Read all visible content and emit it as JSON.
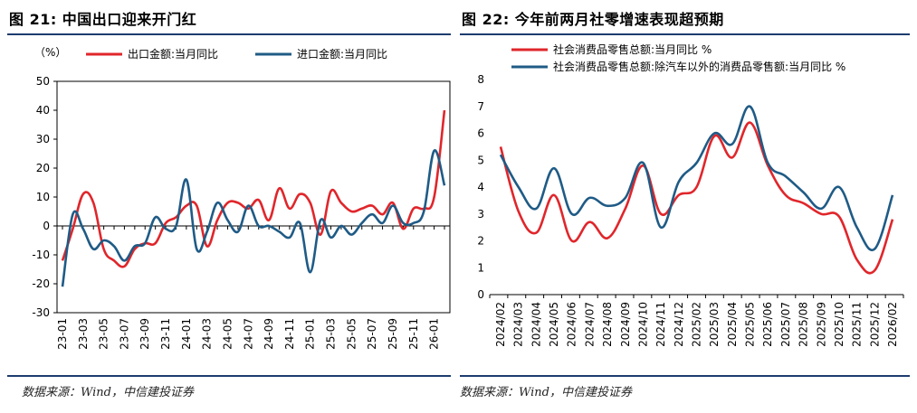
{
  "left": {
    "title": "图 21:  中国出口迎来开门红",
    "source": "数据来源：Wind，中信建投证券"
  },
  "right": {
    "title": "图 22:  今年前两月社零增速表现超预期",
    "source": "数据来源：Wind，中信建投证券"
  },
  "colors": {
    "red": "#e0262b",
    "blue": "#1f5b86",
    "rule": "#1d3c6e"
  },
  "chart_data": [
    {
      "type": "line",
      "title": "中国出口迎来开门红",
      "unit_label": "（%）",
      "ylim": [
        -30,
        50
      ],
      "yticks": [
        -30,
        -20,
        -10,
        0,
        10,
        20,
        30,
        40,
        50
      ],
      "x": [
        "23-01",
        "23-02",
        "23-03",
        "23-04",
        "23-05",
        "23-06",
        "23-07",
        "23-08",
        "23-09",
        "23-10",
        "23-11",
        "23-12",
        "24-01",
        "24-02",
        "24-03",
        "24-04",
        "24-05",
        "24-06",
        "24-07",
        "24-08",
        "24-09",
        "24-10",
        "24-11",
        "24-12",
        "25-01",
        "25-02",
        "25-03",
        "25-04",
        "25-05",
        "25-06",
        "25-07",
        "25-08",
        "25-09",
        "25-10",
        "25-11",
        "25-12",
        "26-01",
        "26-02"
      ],
      "xticks": [
        "23-01",
        "23-03",
        "23-05",
        "23-07",
        "23-09",
        "23-11",
        "24-01",
        "24-03",
        "24-05",
        "24-07",
        "24-09",
        "24-11",
        "25-01",
        "25-03",
        "25-05",
        "25-07",
        "25-09",
        "25-11",
        "26-01"
      ],
      "series": [
        {
          "name": "出口金额:当月同比",
          "color": "#e0262b",
          "values": [
            -12,
            -1,
            11,
            8,
            -8,
            -12,
            -14,
            -8,
            -6,
            -6,
            1,
            3,
            7,
            7,
            -7,
            2,
            8,
            8,
            6,
            9,
            2,
            13,
            6,
            11,
            8,
            -3,
            12,
            8,
            5,
            6,
            7,
            4,
            8,
            -1,
            6,
            6,
            10,
            40
          ]
        },
        {
          "name": "进口金额:当月同比",
          "color": "#1f5b86",
          "values": [
            -21,
            4,
            -1,
            -8,
            -5,
            -7,
            -12,
            -7,
            -6,
            3,
            -1,
            0,
            16,
            -8,
            -2,
            8,
            2,
            -2,
            7,
            0,
            0,
            -2,
            -4,
            1,
            -16,
            2,
            -4,
            0,
            -3,
            1,
            4,
            1,
            7,
            1,
            1,
            5,
            26,
            14
          ]
        }
      ]
    },
    {
      "type": "line",
      "title": "今年前两月社零增速表现超预期",
      "ylim": [
        0,
        8
      ],
      "yticks": [
        0,
        1,
        2,
        3,
        4,
        5,
        6,
        7,
        8
      ],
      "x": [
        "2024/02",
        "2024/03",
        "2024/04",
        "2024/05",
        "2024/06",
        "2024/07",
        "2024/08",
        "2024/09",
        "2024/10",
        "2024/11",
        "2024/12",
        "2025/02",
        "2025/03",
        "2025/04",
        "2025/05",
        "2025/06",
        "2025/07",
        "2025/08",
        "2025/09",
        "2025/10",
        "2025/11",
        "2025/12",
        "2026/02"
      ],
      "series": [
        {
          "name": "社会消费品零售总额:当月同比 %",
          "color": "#e0262b",
          "values": [
            5.5,
            3.1,
            2.3,
            3.7,
            2.0,
            2.7,
            2.1,
            3.2,
            4.8,
            3.0,
            3.7,
            4.0,
            5.9,
            5.1,
            6.4,
            4.8,
            3.7,
            3.4,
            3.0,
            2.9,
            1.3,
            0.9,
            2.8
          ]
        },
        {
          "name": "社会消费品零售总额:除汽车以外的消费品零售额:当月同比 %",
          "color": "#1f5b86",
          "values": [
            5.2,
            4.0,
            3.2,
            4.7,
            3.0,
            3.6,
            3.3,
            3.6,
            4.9,
            2.5,
            4.2,
            4.9,
            6.0,
            5.6,
            7.0,
            4.9,
            4.4,
            3.8,
            3.2,
            4.0,
            2.5,
            1.7,
            3.7
          ]
        }
      ]
    }
  ]
}
